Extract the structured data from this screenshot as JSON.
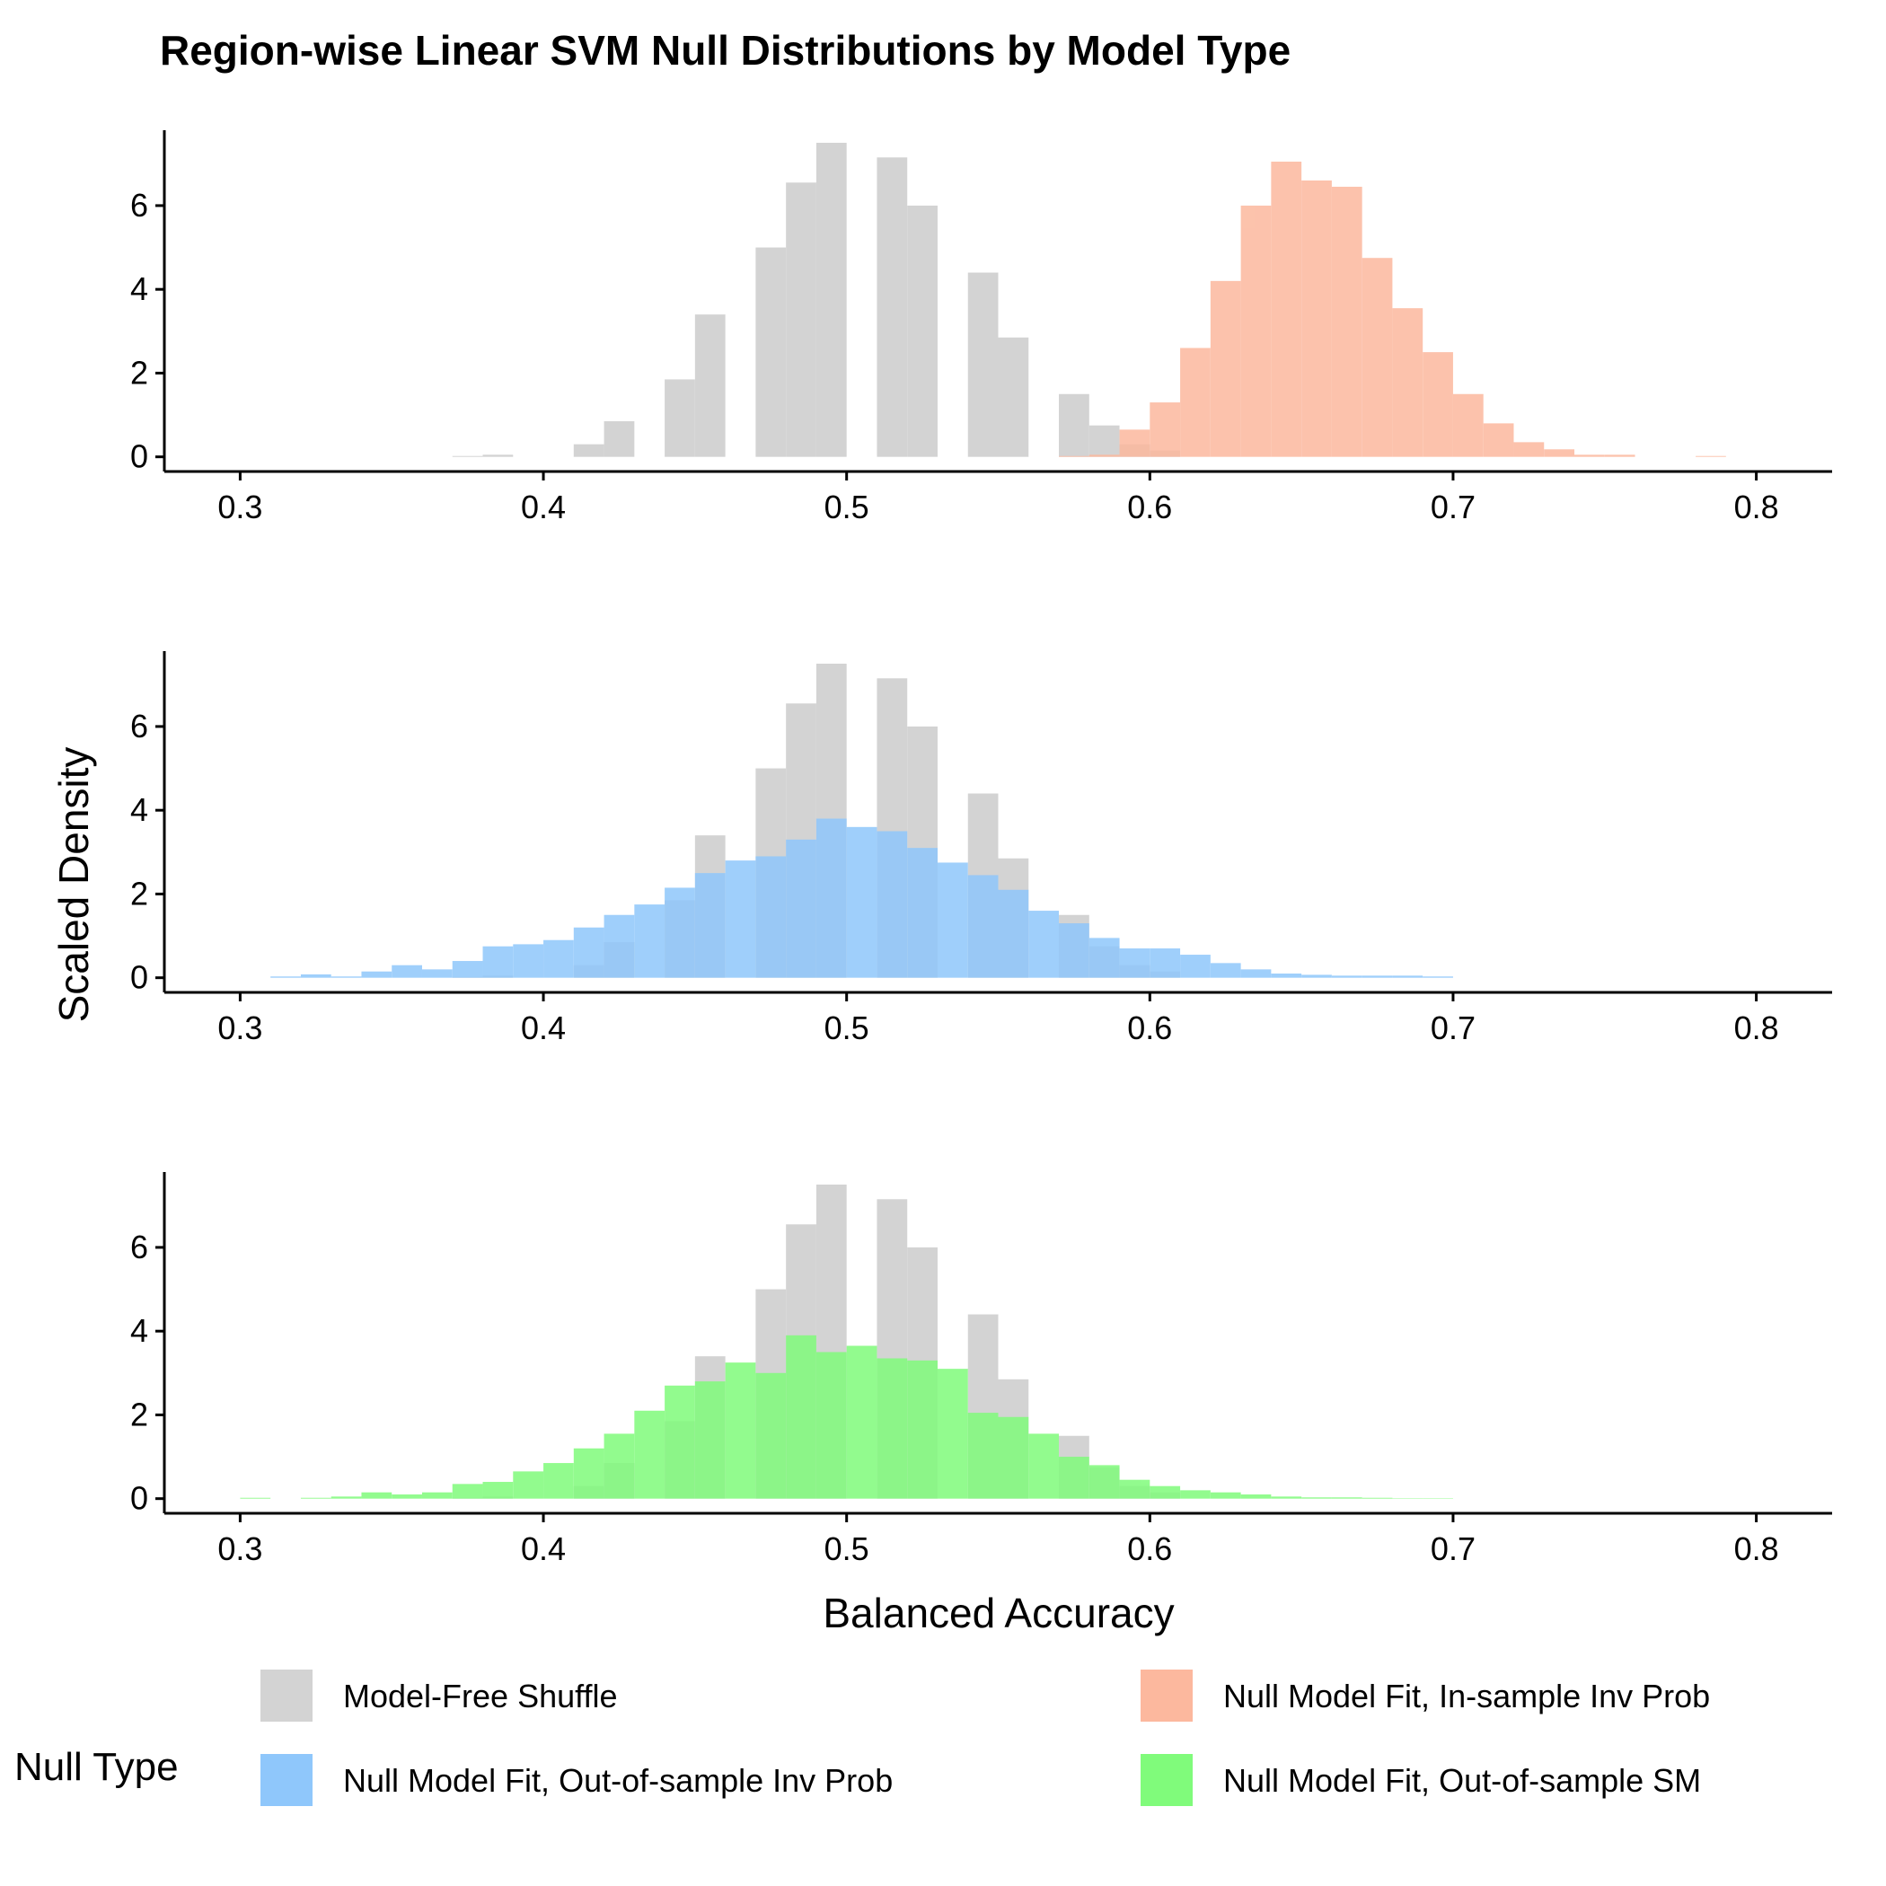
{
  "chart_data": {
    "type": "histogram",
    "title": "Region-wise Linear SVM Null Distributions by Model Type",
    "xlabel": "Balanced Accuracy",
    "ylabel": "Scaled Density",
    "xlim": [
      0.275,
      0.825
    ],
    "ylim": [
      -0.35,
      7.8
    ],
    "x_ticks": [
      "0.3",
      "0.4",
      "0.5",
      "0.6",
      "0.7",
      "0.8"
    ],
    "y_ticks": [
      "0",
      "2",
      "4",
      "6"
    ],
    "bin_start": 0.3,
    "bin_width": 0.01,
    "grid": false,
    "legend": {
      "title": "Null Type",
      "position": "bottom",
      "items": [
        {
          "label": "Model-Free Shuffle",
          "color": "#d3d3d3"
        },
        {
          "label": "Null Model Fit, In-sample Inv Prob",
          "color": "#fcb89e"
        },
        {
          "label": "Null Model Fit, Out-of-sample Inv Prob",
          "color": "#8fc7fb"
        },
        {
          "label": "Null Model Fit, Out-of-sample SM",
          "color": "#80fb7b"
        }
      ]
    },
    "series": [
      {
        "name": "Model-Free Shuffle",
        "color": "#d3d3d3",
        "values": [
          0,
          0,
          0,
          0,
          0,
          0,
          0,
          0.02,
          0.05,
          0,
          0,
          0.3,
          0.85,
          0,
          1.85,
          3.4,
          0,
          5.0,
          6.55,
          7.5,
          0,
          7.15,
          6.0,
          0,
          4.4,
          2.85,
          0,
          1.5,
          0.75,
          0.3,
          0.15,
          0,
          0,
          0,
          0,
          0,
          0,
          0,
          0,
          0,
          0,
          0,
          0,
          0,
          0,
          0,
          0,
          0,
          0,
          0
        ]
      },
      {
        "name": "Null Model Fit, In-sample Inv Prob",
        "color": "#fcb89e",
        "values": [
          0,
          0,
          0,
          0,
          0,
          0,
          0,
          0,
          0,
          0,
          0,
          0,
          0,
          0,
          0,
          0,
          0,
          0,
          0,
          0,
          0,
          0,
          0,
          0,
          0,
          0,
          0,
          0.02,
          0.05,
          0.65,
          1.3,
          2.6,
          4.2,
          6.0,
          7.05,
          6.6,
          6.45,
          4.75,
          3.55,
          2.5,
          1.5,
          0.8,
          0.35,
          0.18,
          0.05,
          0.05,
          0,
          0,
          0.02,
          0
        ]
      },
      {
        "name": "Null Model Fit, Out-of-sample Inv Prob",
        "color": "#8fc7fb",
        "values": [
          0,
          0.03,
          0.08,
          0.03,
          0.15,
          0.3,
          0.2,
          0.4,
          0.75,
          0.8,
          0.9,
          1.2,
          1.5,
          1.75,
          2.15,
          2.5,
          2.8,
          2.9,
          3.3,
          3.8,
          3.6,
          3.5,
          3.1,
          2.75,
          2.45,
          2.1,
          1.6,
          1.3,
          0.95,
          0.7,
          0.7,
          0.55,
          0.35,
          0.2,
          0.1,
          0.07,
          0.05,
          0.05,
          0.05,
          0.03,
          0,
          0,
          0,
          0,
          0,
          0,
          0,
          0,
          0,
          0
        ]
      },
      {
        "name": "Null Model Fit, Out-of-sample SM",
        "color": "#80fb7b",
        "values": [
          0.02,
          0,
          0.02,
          0.05,
          0.15,
          0.1,
          0.15,
          0.35,
          0.4,
          0.65,
          0.85,
          1.2,
          1.55,
          2.1,
          2.7,
          2.8,
          3.25,
          3.0,
          3.9,
          3.5,
          3.65,
          3.35,
          3.3,
          3.1,
          2.05,
          1.95,
          1.55,
          1.0,
          0.8,
          0.45,
          0.3,
          0.2,
          0.15,
          0.1,
          0.05,
          0.03,
          0.03,
          0.02,
          0.01,
          0.01,
          0,
          0,
          0,
          0,
          0,
          0,
          0,
          0,
          0,
          0
        ]
      }
    ],
    "panels": [
      {
        "background": "Model-Free Shuffle",
        "overlay": "Null Model Fit, In-sample Inv Prob"
      },
      {
        "background": "Model-Free Shuffle",
        "overlay": "Null Model Fit, Out-of-sample Inv Prob"
      },
      {
        "background": "Model-Free Shuffle",
        "overlay": "Null Model Fit, Out-of-sample SM"
      }
    ]
  }
}
